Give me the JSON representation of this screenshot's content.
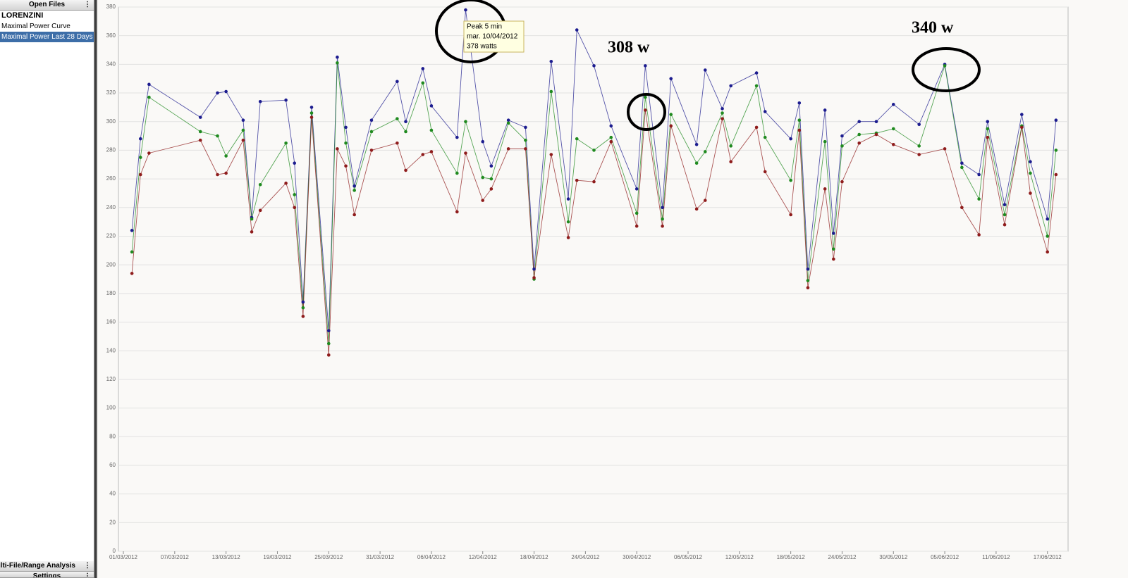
{
  "sidebar": {
    "header": "Open Files",
    "athlete": "LORENZINI",
    "items": [
      "Maximal Power Curve",
      "Maximal Power Last 28 Days"
    ],
    "footer": [
      "Multi-File/Range Analysis",
      "Settings"
    ]
  },
  "chart_data": {
    "type": "line",
    "x": [
      "2012-03-02",
      "2012-03-03",
      "2012-03-04",
      "2012-03-10",
      "2012-03-12",
      "2012-03-13",
      "2012-03-15",
      "2012-03-16",
      "2012-03-17",
      "2012-03-20",
      "2012-03-21",
      "2012-03-22",
      "2012-03-23",
      "2012-03-25",
      "2012-03-26",
      "2012-03-27",
      "2012-03-28",
      "2012-03-30",
      "2012-04-02",
      "2012-04-03",
      "2012-04-05",
      "2012-04-06",
      "2012-04-09",
      "2012-04-10",
      "2012-04-12",
      "2012-04-13",
      "2012-04-15",
      "2012-04-17",
      "2012-04-18",
      "2012-04-20",
      "2012-04-22",
      "2012-04-23",
      "2012-04-25",
      "2012-04-27",
      "2012-04-30",
      "2012-05-01",
      "2012-05-03",
      "2012-05-04",
      "2012-05-07",
      "2012-05-08",
      "2012-05-10",
      "2012-05-11",
      "2012-05-14",
      "2012-05-15",
      "2012-05-18",
      "2012-05-19",
      "2012-05-20",
      "2012-05-22",
      "2012-05-23",
      "2012-05-24",
      "2012-05-26",
      "2012-05-28",
      "2012-05-30",
      "2012-06-02",
      "2012-06-05",
      "2012-06-07",
      "2012-06-09",
      "2012-06-10",
      "2012-06-12",
      "2012-06-14",
      "2012-06-15",
      "2012-06-17",
      "2012-06-18"
    ],
    "series": [
      {
        "color": "#1c1c8f",
        "values": [
          224,
          288,
          326,
          303,
          320,
          321,
          301,
          233,
          314,
          315,
          271,
          174,
          310,
          154,
          345,
          296,
          255,
          301,
          328,
          300,
          337,
          311,
          289,
          378,
          286,
          269,
          301,
          296,
          197,
          342,
          246,
          364,
          339,
          297,
          253,
          339,
          240,
          330,
          284,
          336,
          309,
          325,
          334,
          307,
          288,
          313,
          197,
          308,
          222,
          290,
          300,
          300,
          312,
          298,
          340,
          271,
          263,
          300,
          242,
          305,
          272,
          232,
          301
        ]
      },
      {
        "color": "#1f8a1f",
        "values": [
          209,
          275,
          317,
          293,
          290,
          276,
          294,
          232,
          256,
          285,
          249,
          170,
          306,
          145,
          341,
          285,
          252,
          293,
          302,
          293,
          327,
          294,
          264,
          300,
          261,
          260,
          299,
          287,
          190,
          321,
          230,
          288,
          280,
          289,
          236,
          317,
          232,
          305,
          271,
          279,
          306,
          283,
          325,
          289,
          259,
          301,
          189,
          286,
          211,
          283,
          291,
          292,
          295,
          283,
          339,
          268,
          246,
          295,
          235,
          297,
          264,
          220,
          280
        ]
      },
      {
        "color": "#8f1c1c",
        "values": [
          194,
          263,
          278,
          287,
          263,
          264,
          287,
          223,
          238,
          257,
          240,
          164,
          303,
          137,
          281,
          269,
          235,
          280,
          285,
          266,
          277,
          279,
          237,
          278,
          245,
          253,
          281,
          281,
          191,
          277,
          219,
          259,
          258,
          286,
          227,
          308,
          227,
          297,
          239,
          245,
          302,
          272,
          296,
          265,
          235,
          294,
          184,
          253,
          204,
          258,
          285,
          291,
          284,
          277,
          281,
          240,
          221,
          289,
          228,
          296,
          250,
          209,
          263
        ]
      }
    ],
    "xlim": [
      "2012-03-01",
      "2012-06-19"
    ],
    "xticks": [
      {
        "value": "2012-03-01",
        "label": "01/03/2012"
      },
      {
        "value": "2012-03-07",
        "label": "07/03/2012"
      },
      {
        "value": "2012-03-13",
        "label": "13/03/2012"
      },
      {
        "value": "2012-03-19",
        "label": "19/03/2012"
      },
      {
        "value": "2012-03-25",
        "label": "25/03/2012"
      },
      {
        "value": "2012-03-31",
        "label": "31/03/2012"
      },
      {
        "value": "2012-04-06",
        "label": "06/04/2012"
      },
      {
        "value": "2012-04-12",
        "label": "12/04/2012"
      },
      {
        "value": "2012-04-18",
        "label": "18/04/2012"
      },
      {
        "value": "2012-04-24",
        "label": "24/04/2012"
      },
      {
        "value": "2012-04-30",
        "label": "30/04/2012"
      },
      {
        "value": "2012-05-06",
        "label": "06/05/2012"
      },
      {
        "value": "2012-05-12",
        "label": "12/05/2012"
      },
      {
        "value": "2012-05-18",
        "label": "18/05/2012"
      },
      {
        "value": "2012-05-24",
        "label": "24/05/2012"
      },
      {
        "value": "2012-05-30",
        "label": "30/05/2012"
      },
      {
        "value": "2012-06-05",
        "label": "05/06/2012"
      },
      {
        "value": "2012-06-11",
        "label": "11/06/2012"
      },
      {
        "value": "2012-06-17",
        "label": "17/06/2012"
      }
    ],
    "ylim": [
      0,
      380
    ],
    "yticks": [
      0,
      20,
      40,
      60,
      80,
      100,
      120,
      140,
      160,
      180,
      200,
      220,
      240,
      260,
      280,
      300,
      320,
      340,
      360,
      380
    ],
    "grid": true,
    "annotations": [
      "308 w",
      "340 w"
    ],
    "tooltip": [
      "Peak 5 min",
      "mar. 10/04/2012",
      "378 watts"
    ]
  }
}
